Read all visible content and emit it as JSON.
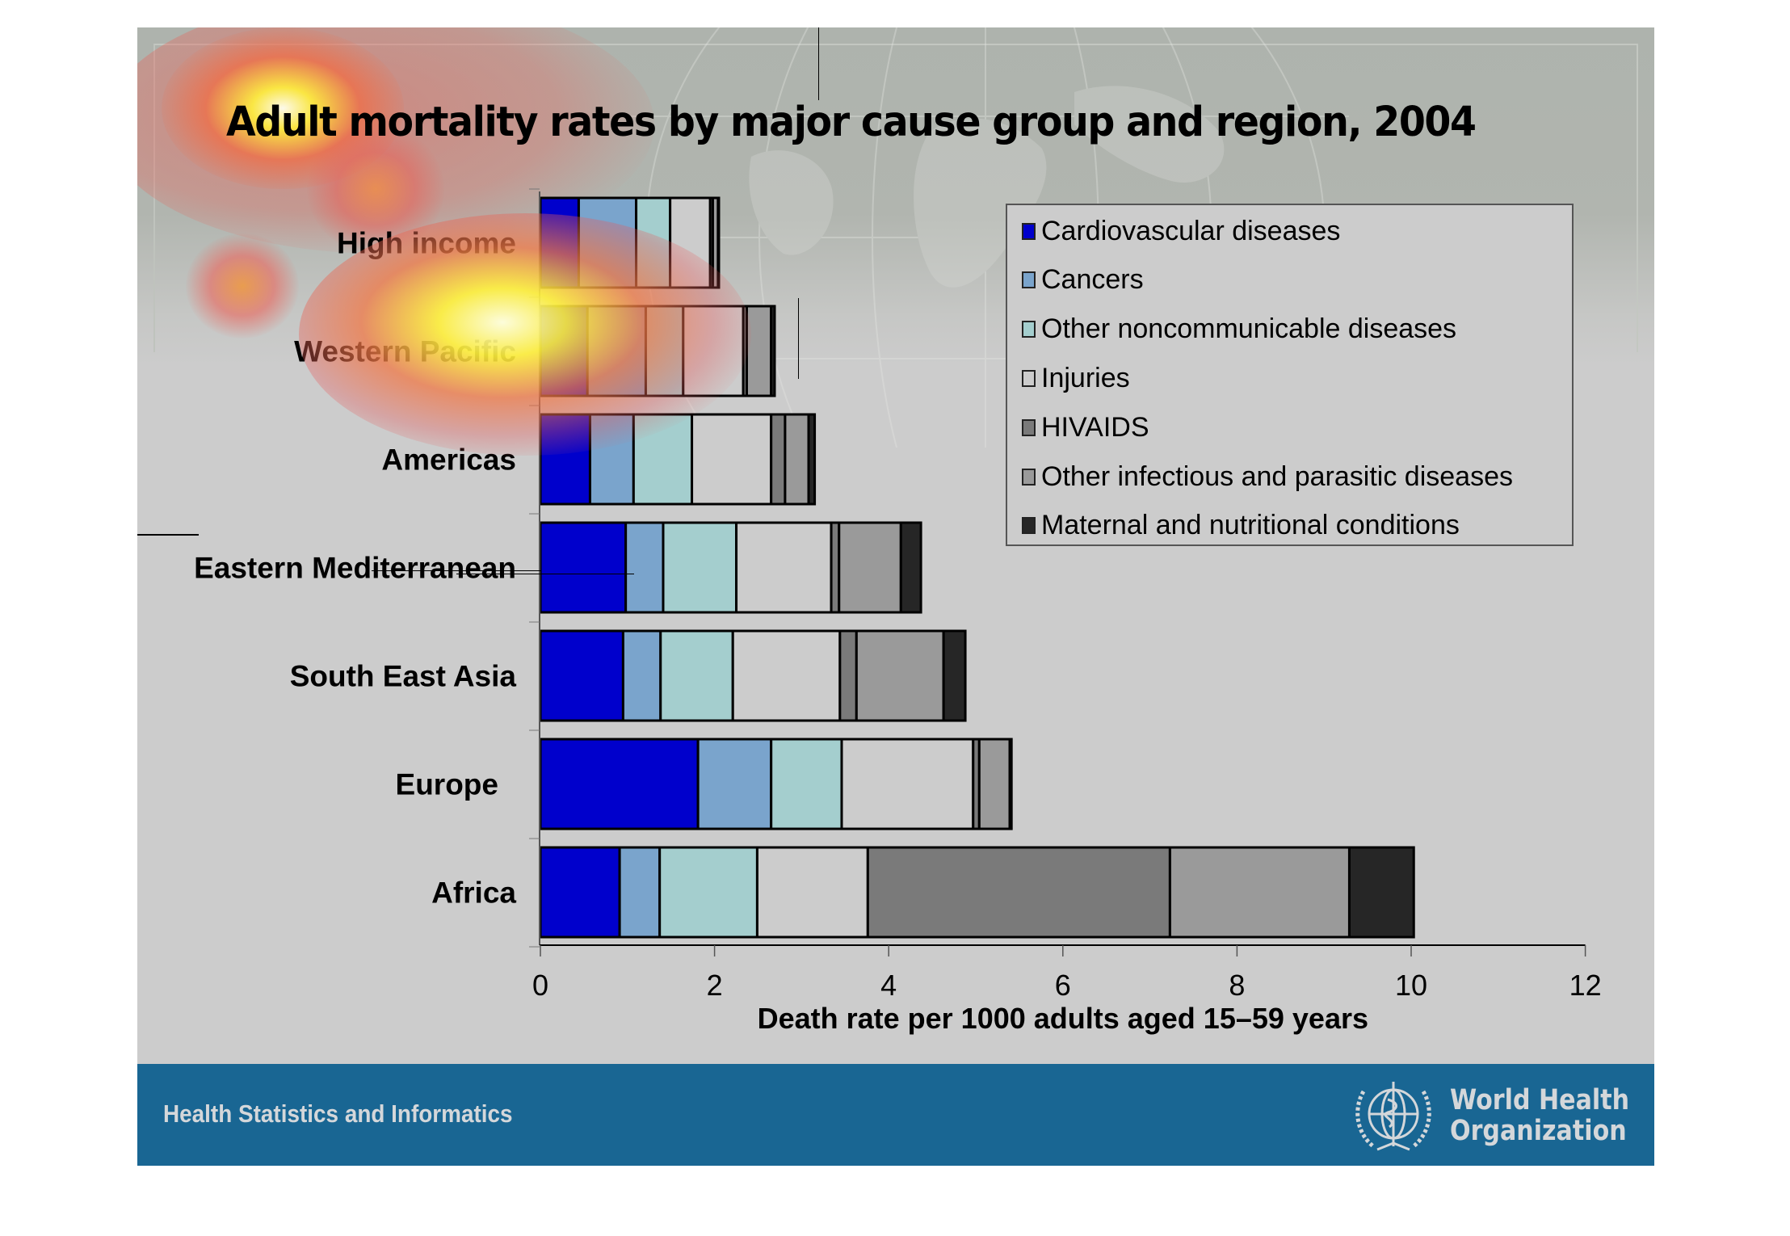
{
  "slide": {
    "title": "Adult mortality rates by major cause group and region, 2004",
    "footer_text": "Health Statistics and Informatics",
    "org_name_line1": "World Health",
    "org_name_line2": "Organization",
    "colors": {
      "footer_band": "#196693",
      "slide_background": "#cccccc"
    }
  },
  "chart_data": {
    "type": "bar",
    "orientation": "horizontal",
    "stacked": true,
    "title": "Adult mortality rates by major cause group and region, 2004",
    "xlabel": "Death rate per 1000 adults aged 15–59 years",
    "ylabel": "",
    "xlim": [
      0,
      12
    ],
    "xticks": [
      0,
      2,
      4,
      6,
      8,
      10,
      12
    ],
    "xtick_labels": [
      "0",
      "2",
      "4",
      "6",
      "8",
      "10",
      "12"
    ],
    "grid": false,
    "legend_position": "top-right",
    "categories": [
      "High income",
      "Western Pacific",
      "Americas",
      "Eastern Mediterranean",
      "South East Asia",
      "Europe",
      "Africa"
    ],
    "series": [
      {
        "name": "Cardiovascular diseases",
        "color": "#0000cc",
        "values": [
          0.44,
          0.54,
          0.57,
          0.98,
          0.95,
          1.81,
          0.91
        ]
      },
      {
        "name": "Cancers",
        "color": "#7aa4cc",
        "values": [
          0.66,
          0.67,
          0.5,
          0.43,
          0.43,
          0.84,
          0.46
        ]
      },
      {
        "name": "Other noncommunicable diseases",
        "color": "#a4cece",
        "values": [
          0.39,
          0.43,
          0.67,
          0.84,
          0.83,
          0.81,
          1.12
        ]
      },
      {
        "name": "Injuries",
        "color": "#cccccc",
        "values": [
          0.46,
          0.69,
          0.91,
          1.09,
          1.23,
          1.51,
          1.27
        ]
      },
      {
        "name": "HIVAIDS",
        "color": "#7a7a7a",
        "values": [
          0.03,
          0.04,
          0.16,
          0.09,
          0.19,
          0.07,
          3.47
        ]
      },
      {
        "name": "Other infectious and parasitic diseases",
        "color": "#9a9a9a",
        "values": [
          0.06,
          0.28,
          0.27,
          0.71,
          1.0,
          0.35,
          2.06
        ]
      },
      {
        "name": "Maternal and nutritional conditions",
        "color": "#262626",
        "values": [
          0.01,
          0.04,
          0.07,
          0.23,
          0.25,
          0.02,
          0.74
        ]
      }
    ]
  }
}
